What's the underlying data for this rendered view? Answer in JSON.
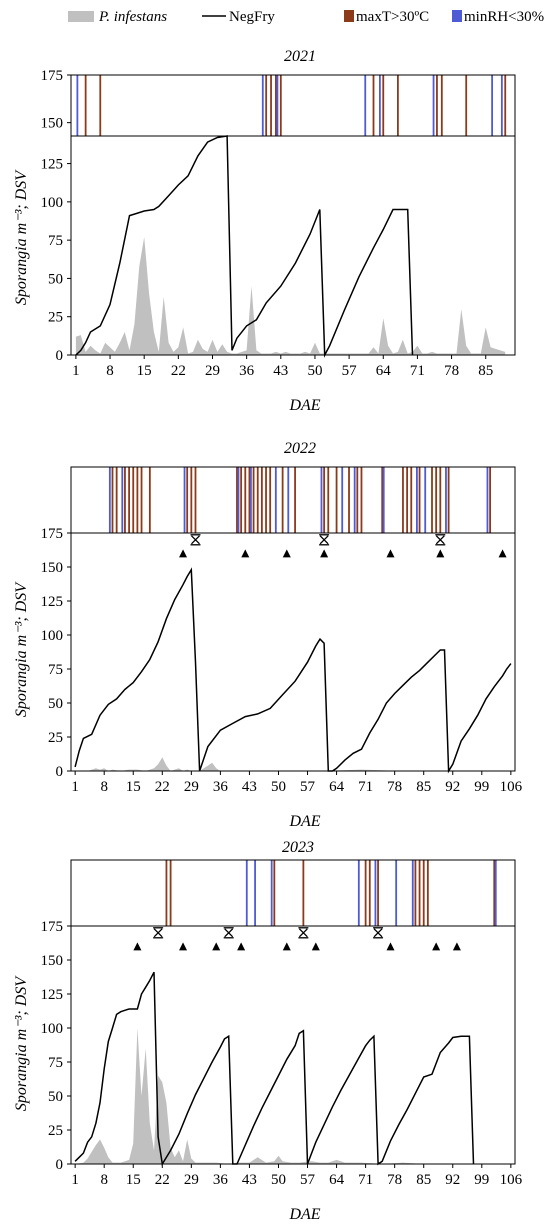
{
  "legend": {
    "items": [
      {
        "label": "P. infestans",
        "italic": true,
        "kind": "area",
        "color": "#c0c0c0"
      },
      {
        "label": "NegFry",
        "italic": false,
        "kind": "line",
        "color": "#000000"
      },
      {
        "label": "maxT>30ºC",
        "italic": false,
        "kind": "swatch",
        "color": "#8b3a1a"
      },
      {
        "label": "minRH<30%",
        "italic": false,
        "kind": "swatch",
        "color": "#4f5bd5"
      }
    ]
  },
  "shared": {
    "ylabel": "Sporangia m⁻³; DSV",
    "xlabel": "DAE",
    "yticks": [
      0,
      25,
      50,
      75,
      100,
      125,
      150,
      175
    ],
    "ylim": [
      0,
      175
    ],
    "colors": {
      "maxT": "#8b3a1a",
      "minRH": "#4f5bd5",
      "sporangia": "#c0c0c0",
      "negfry": "#000000"
    }
  },
  "chart_data": [
    {
      "type": "line",
      "title": "2021",
      "xlim": [
        0,
        91
      ],
      "xticks": [
        1,
        8,
        15,
        22,
        29,
        36,
        43,
        50,
        57,
        64,
        71,
        78,
        85
      ],
      "xtick_labels": [
        "1",
        "8",
        "15",
        "22",
        "29",
        "36",
        "43",
        "50",
        "57",
        "64",
        "71",
        "78",
        "85"
      ],
      "strip_ylim": [
        143,
        175
      ],
      "strip_yticks": [
        150,
        175
      ],
      "main_ymax": 143,
      "series": [
        {
          "name": "NegFry",
          "x": [
            1,
            2,
            3,
            4,
            6,
            8,
            10,
            12,
            13,
            15,
            17,
            18,
            20,
            22,
            24,
            26,
            28,
            30,
            32,
            33,
            34,
            36,
            38,
            40,
            43,
            46,
            49,
            51,
            52,
            53,
            56,
            59,
            62,
            64,
            66,
            68,
            69,
            70
          ],
          "y": [
            0,
            3,
            8,
            15,
            19,
            33,
            60,
            91,
            92,
            94,
            95,
            97,
            104,
            111,
            117,
            130,
            139,
            142,
            143,
            3,
            11,
            19,
            23,
            34,
            45,
            60,
            79,
            95,
            0,
            6,
            29,
            51,
            70,
            82,
            95,
            95,
            95,
            0
          ]
        },
        {
          "name": "P. infestans",
          "x": [
            1,
            2,
            3,
            4,
            5,
            6,
            7,
            8,
            9,
            10,
            11,
            12,
            13,
            14,
            15,
            16,
            17,
            18,
            19,
            20,
            21,
            22,
            23,
            24,
            25,
            26,
            27,
            28,
            29,
            30,
            31,
            32,
            33,
            34,
            35,
            36,
            37,
            38,
            39,
            40,
            41,
            42,
            43,
            44,
            45,
            46,
            47,
            48,
            49,
            50,
            51,
            52,
            53,
            54,
            55,
            56,
            57,
            58,
            59,
            60,
            61,
            62,
            63,
            64,
            65,
            66,
            67,
            68,
            69,
            70,
            71,
            72,
            73,
            74,
            75,
            76,
            77,
            78,
            79,
            80,
            81,
            82,
            83,
            84,
            85,
            86,
            87,
            88,
            89
          ],
          "y": [
            12,
            13,
            2,
            6,
            3,
            1,
            8,
            5,
            2,
            8,
            15,
            3,
            20,
            58,
            77,
            40,
            15,
            2,
            38,
            8,
            2,
            5,
            18,
            1,
            2,
            10,
            4,
            2,
            10,
            2,
            7,
            2,
            1,
            1,
            2,
            3,
            45,
            3,
            1,
            1,
            1,
            2,
            1,
            2,
            1,
            1,
            1,
            2,
            1,
            8,
            1,
            1,
            1,
            1,
            1,
            1,
            1,
            1,
            1,
            1,
            1,
            5,
            1,
            24,
            6,
            1,
            2,
            10,
            1,
            2,
            6,
            1,
            1,
            2,
            1,
            1,
            1,
            1,
            1,
            30,
            6,
            1,
            1,
            1,
            18,
            5,
            4,
            3,
            2
          ]
        }
      ],
      "events": {
        "maxT": [
          3,
          6,
          40,
          41,
          42,
          43,
          62,
          64,
          67,
          75,
          76,
          81,
          89
        ],
        "minRH": [
          1,
          39,
          42,
          60,
          63,
          74,
          86,
          88
        ]
      },
      "markers": {
        "triangles": [],
        "asterisks": []
      }
    },
    {
      "type": "line",
      "title": "2022",
      "xlim": [
        0,
        107
      ],
      "xticks": [
        1,
        8,
        15,
        22,
        29,
        36,
        43,
        50,
        57,
        64,
        71,
        78,
        85,
        92,
        99,
        106
      ],
      "xtick_labels": [
        "1",
        "8",
        "15",
        "22",
        "29",
        "36",
        "43",
        "50",
        "57",
        "64",
        "71",
        "78",
        "85",
        "92",
        "99",
        "106"
      ],
      "strip_ylim": [
        0,
        1
      ],
      "strip_yticks": [],
      "main_ymax": 175,
      "series": [
        {
          "name": "NegFry",
          "x": [
            1,
            2,
            3,
            5,
            7,
            9,
            11,
            13,
            15,
            17,
            19,
            21,
            23,
            25,
            27,
            28,
            29,
            30,
            31,
            33,
            36,
            39,
            42,
            45,
            48,
            51,
            54,
            57,
            59,
            60,
            61,
            62,
            63,
            64,
            66,
            68,
            70,
            72,
            74,
            76,
            78,
            80,
            82,
            84,
            86,
            88,
            89,
            90,
            91,
            92,
            94,
            96,
            98,
            100,
            102,
            104,
            105,
            106
          ],
          "y": [
            3,
            15,
            24,
            27,
            41,
            49,
            53,
            60,
            65,
            73,
            82,
            95,
            112,
            126,
            137,
            143,
            148,
            80,
            0,
            18,
            30,
            35,
            40,
            42,
            46,
            56,
            66,
            80,
            92,
            97,
            94,
            0,
            0,
            2,
            8,
            13,
            16,
            28,
            38,
            50,
            57,
            63,
            69,
            74,
            80,
            86,
            89,
            89,
            0,
            5,
            22,
            31,
            41,
            53,
            62,
            70,
            75,
            79
          ]
        },
        {
          "name": "P. infestans",
          "x": [
            1,
            4,
            6,
            7,
            8,
            9,
            10,
            12,
            14,
            16,
            18,
            20,
            21,
            22,
            23,
            24,
            25,
            26,
            27,
            28,
            29,
            30,
            31,
            32,
            33,
            34,
            35,
            36,
            38,
            50,
            60,
            70,
            80,
            90,
            106
          ],
          "y": [
            0,
            0,
            2,
            1,
            2,
            0,
            1,
            0,
            1,
            1,
            0,
            2,
            5,
            10,
            4,
            0,
            1,
            2,
            0,
            1,
            0,
            0,
            0,
            2,
            4,
            6,
            2,
            0,
            0,
            0,
            0,
            1,
            0,
            0,
            0
          ]
        }
      ],
      "events": {
        "maxT": [
          10,
          11,
          13,
          14,
          15,
          16,
          17,
          19,
          28,
          29,
          30,
          40,
          41,
          42,
          43,
          44,
          45,
          46,
          47,
          48,
          51,
          54,
          61,
          62,
          64,
          67,
          69,
          70,
          75,
          80,
          81,
          82,
          84,
          87,
          88,
          89,
          91,
          101
        ],
        "minRH": [
          9,
          12,
          27,
          40,
          43,
          49,
          52,
          60,
          65,
          68,
          75,
          83,
          85,
          90,
          100
        ]
      },
      "markers": {
        "triangles": [
          27,
          42,
          52,
          61,
          77,
          89,
          104
        ],
        "asterisks": [
          30,
          61,
          89
        ]
      }
    },
    {
      "type": "line",
      "title": "2023",
      "xlim": [
        0,
        107
      ],
      "xticks": [
        1,
        8,
        15,
        22,
        29,
        36,
        43,
        50,
        57,
        64,
        71,
        78,
        85,
        92,
        99,
        106
      ],
      "xtick_labels": [
        "1",
        "8",
        "15",
        "22",
        "29",
        "36",
        "43",
        "50",
        "57",
        "64",
        "71",
        "78",
        "85",
        "92",
        "99",
        "106"
      ],
      "strip_ylim": [
        0,
        1
      ],
      "strip_yticks": [],
      "main_ymax": 175,
      "series": [
        {
          "name": "NegFry",
          "x": [
            1,
            2,
            3,
            4,
            5,
            6,
            7,
            8,
            9,
            10,
            11,
            12,
            13,
            14,
            16,
            17,
            18,
            19,
            20,
            21,
            22,
            24,
            26,
            28,
            30,
            32,
            34,
            36,
            37,
            38,
            39,
            40,
            42,
            44,
            46,
            48,
            50,
            52,
            54,
            55,
            56,
            57,
            59,
            61,
            63,
            65,
            67,
            69,
            71,
            72,
            73,
            74,
            75,
            77,
            79,
            81,
            83,
            85,
            87,
            89,
            91,
            92,
            94,
            96,
            97
          ],
          "y": [
            2,
            5,
            8,
            16,
            20,
            30,
            45,
            70,
            90,
            100,
            110,
            112,
            113,
            114,
            114,
            125,
            130,
            135,
            141,
            20,
            0,
            10,
            22,
            37,
            51,
            63,
            75,
            86,
            92,
            94,
            0,
            0,
            14,
            28,
            41,
            53,
            65,
            77,
            87,
            96,
            98,
            0,
            16,
            29,
            42,
            54,
            65,
            76,
            87,
            91,
            94,
            0,
            2,
            17,
            29,
            40,
            52,
            64,
            66,
            82,
            89,
            93,
            94,
            94,
            0
          ]
        },
        {
          "name": "P. infestans",
          "x": [
            1,
            3,
            4,
            5,
            6,
            7,
            8,
            9,
            10,
            11,
            12,
            13,
            14,
            15,
            16,
            17,
            18,
            19,
            20,
            21,
            22,
            23,
            24,
            25,
            26,
            27,
            28,
            29,
            30,
            31,
            32,
            35,
            38,
            40,
            43,
            45,
            47,
            49,
            50,
            51,
            53,
            55,
            58,
            60,
            62,
            64,
            66,
            68,
            70,
            75,
            80,
            85,
            90,
            95,
            106
          ],
          "y": [
            0,
            1,
            4,
            9,
            14,
            18,
            12,
            5,
            1,
            1,
            1,
            2,
            3,
            15,
            100,
            50,
            85,
            30,
            10,
            65,
            60,
            45,
            12,
            5,
            10,
            2,
            18,
            4,
            1,
            1,
            1,
            1,
            0,
            1,
            1,
            5,
            1,
            2,
            6,
            2,
            1,
            1,
            2,
            1,
            1,
            3,
            1,
            1,
            1,
            0,
            1,
            0,
            0,
            0,
            0
          ]
        }
      ],
      "events": {
        "maxT": [
          23,
          24,
          49,
          56,
          71,
          72,
          74,
          83,
          84,
          85,
          86,
          102
        ],
        "minRH": [
          42,
          44,
          48,
          69,
          73,
          78,
          82,
          102
        ]
      },
      "markers": {
        "triangles": [
          16,
          27,
          35,
          41,
          52,
          59,
          77,
          88,
          93
        ],
        "asterisks": [
          21,
          38,
          56,
          74
        ]
      }
    }
  ]
}
